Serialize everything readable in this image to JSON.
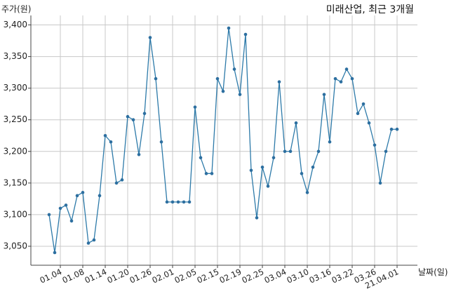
{
  "chart_data": {
    "type": "line",
    "title": "미래산업, 최근 3개월",
    "ylabel": "주가(원)",
    "xlabel": "날짜(일)",
    "ylim": [
      3020,
      3415
    ],
    "yticks": [
      3050,
      3100,
      3150,
      3200,
      3250,
      3300,
      3350,
      3400
    ],
    "ytick_labels": [
      "3,050",
      "3,100",
      "3,150",
      "3,200",
      "3,250",
      "3,300",
      "3,350",
      "3,400"
    ],
    "grid": true,
    "xtick_labels": [
      "01.04",
      "01.08",
      "01.14",
      "01.20",
      "01.26",
      "02.01",
      "02.05",
      "02.15",
      "02.19",
      "02.25",
      "03.04",
      "03.10",
      "03.16",
      "03.22",
      "03.26",
      "21.04.01"
    ],
    "xtick_index": [
      2,
      6,
      10,
      14,
      18,
      22,
      26,
      30,
      34,
      38,
      42,
      46,
      50,
      54,
      58,
      62
    ],
    "series": [
      {
        "values": [
          3100,
          3040,
          3110,
          3115,
          3090,
          3130,
          3135,
          3055,
          3060,
          3130,
          3225,
          3215,
          3150,
          3155,
          3255,
          3250,
          3195,
          3260,
          3380,
          3315,
          3215,
          3120,
          3120,
          3120,
          3120,
          3120,
          3270,
          3190,
          3165,
          3165,
          3315,
          3295,
          3395,
          3330,
          3290,
          3385,
          3170,
          3095,
          3175,
          3145,
          3190,
          3310,
          3200,
          3200,
          3245,
          3165,
          3135,
          3175,
          3200,
          3290,
          3215,
          3315,
          3310,
          3330,
          3315,
          3260,
          3275,
          3245,
          3210,
          3150,
          3200,
          3235,
          3235
        ]
      }
    ]
  }
}
